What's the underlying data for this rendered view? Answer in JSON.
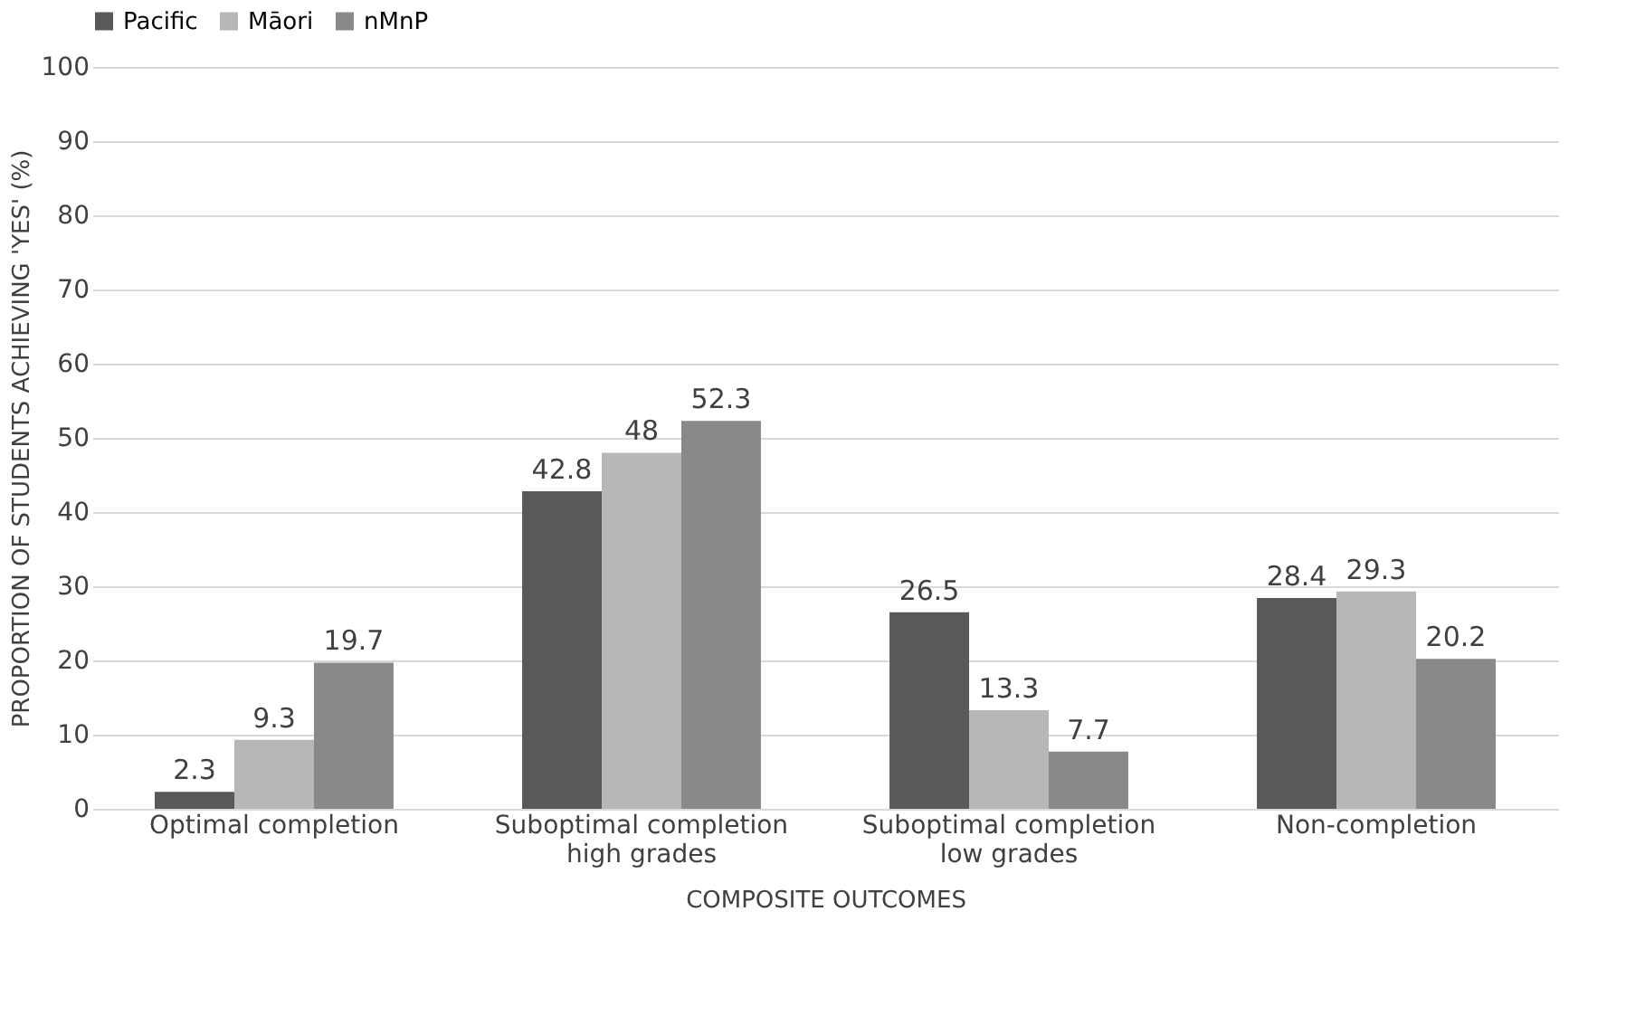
{
  "chart_data": {
    "type": "bar",
    "categories": [
      "Optimal completion",
      "Suboptimal completion\nhigh grades",
      "Suboptimal completion\nlow grades",
      "Non-completion"
    ],
    "series": [
      {
        "name": "Pacific",
        "color": "#595959",
        "values": [
          2.3,
          42.8,
          26.5,
          28.4
        ]
      },
      {
        "name": "Māori",
        "color": "#b7b7b7",
        "values": [
          9.3,
          48,
          13.3,
          29.3
        ]
      },
      {
        "name": "nMnP",
        "color": "#898989",
        "values": [
          19.7,
          52.3,
          7.7,
          20.2
        ]
      }
    ],
    "xlabel": "COMPOSITE OUTCOMES",
    "ylabel": "PROPORTION OF STUDENTS ACHIEVING 'YES' (%)",
    "ylim": [
      0,
      100
    ],
    "yticks": [
      0,
      10,
      20,
      30,
      40,
      50,
      60,
      70,
      80,
      90,
      100
    ],
    "grid": "y",
    "legend": "top",
    "data_labels": true
  }
}
